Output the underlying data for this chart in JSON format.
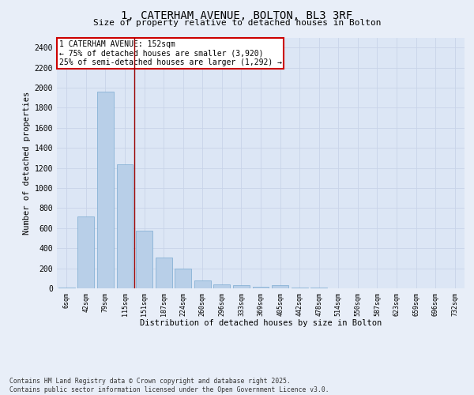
{
  "title1": "1, CATERHAM AVENUE, BOLTON, BL3 3RF",
  "title2": "Size of property relative to detached houses in Bolton",
  "xlabel": "Distribution of detached houses by size in Bolton",
  "ylabel": "Number of detached properties",
  "categories": [
    "6sqm",
    "42sqm",
    "79sqm",
    "115sqm",
    "151sqm",
    "187sqm",
    "224sqm",
    "260sqm",
    "296sqm",
    "333sqm",
    "369sqm",
    "405sqm",
    "442sqm",
    "478sqm",
    "514sqm",
    "550sqm",
    "587sqm",
    "623sqm",
    "659sqm",
    "696sqm",
    "732sqm"
  ],
  "values": [
    10,
    720,
    1960,
    1235,
    575,
    305,
    200,
    75,
    40,
    30,
    15,
    30,
    5,
    10,
    2,
    2,
    0,
    0,
    0,
    0,
    0
  ],
  "bar_color": "#b8cfe8",
  "bar_edge_color": "#7aaad0",
  "vline_color": "#990000",
  "vline_pos": 3.5,
  "annotation_text": "1 CATERHAM AVENUE: 152sqm\n← 75% of detached houses are smaller (3,920)\n25% of semi-detached houses are larger (1,292) →",
  "annotation_box_color": "#ffffff",
  "annotation_box_edge": "#cc0000",
  "ylim": [
    0,
    2500
  ],
  "yticks": [
    0,
    200,
    400,
    600,
    800,
    1000,
    1200,
    1400,
    1600,
    1800,
    2000,
    2200,
    2400
  ],
  "grid_color": "#c8d4e8",
  "bg_color": "#dce6f5",
  "fig_bg_color": "#e8eef8",
  "footer_line1": "Contains HM Land Registry data © Crown copyright and database right 2025.",
  "footer_line2": "Contains public sector information licensed under the Open Government Licence v3.0."
}
